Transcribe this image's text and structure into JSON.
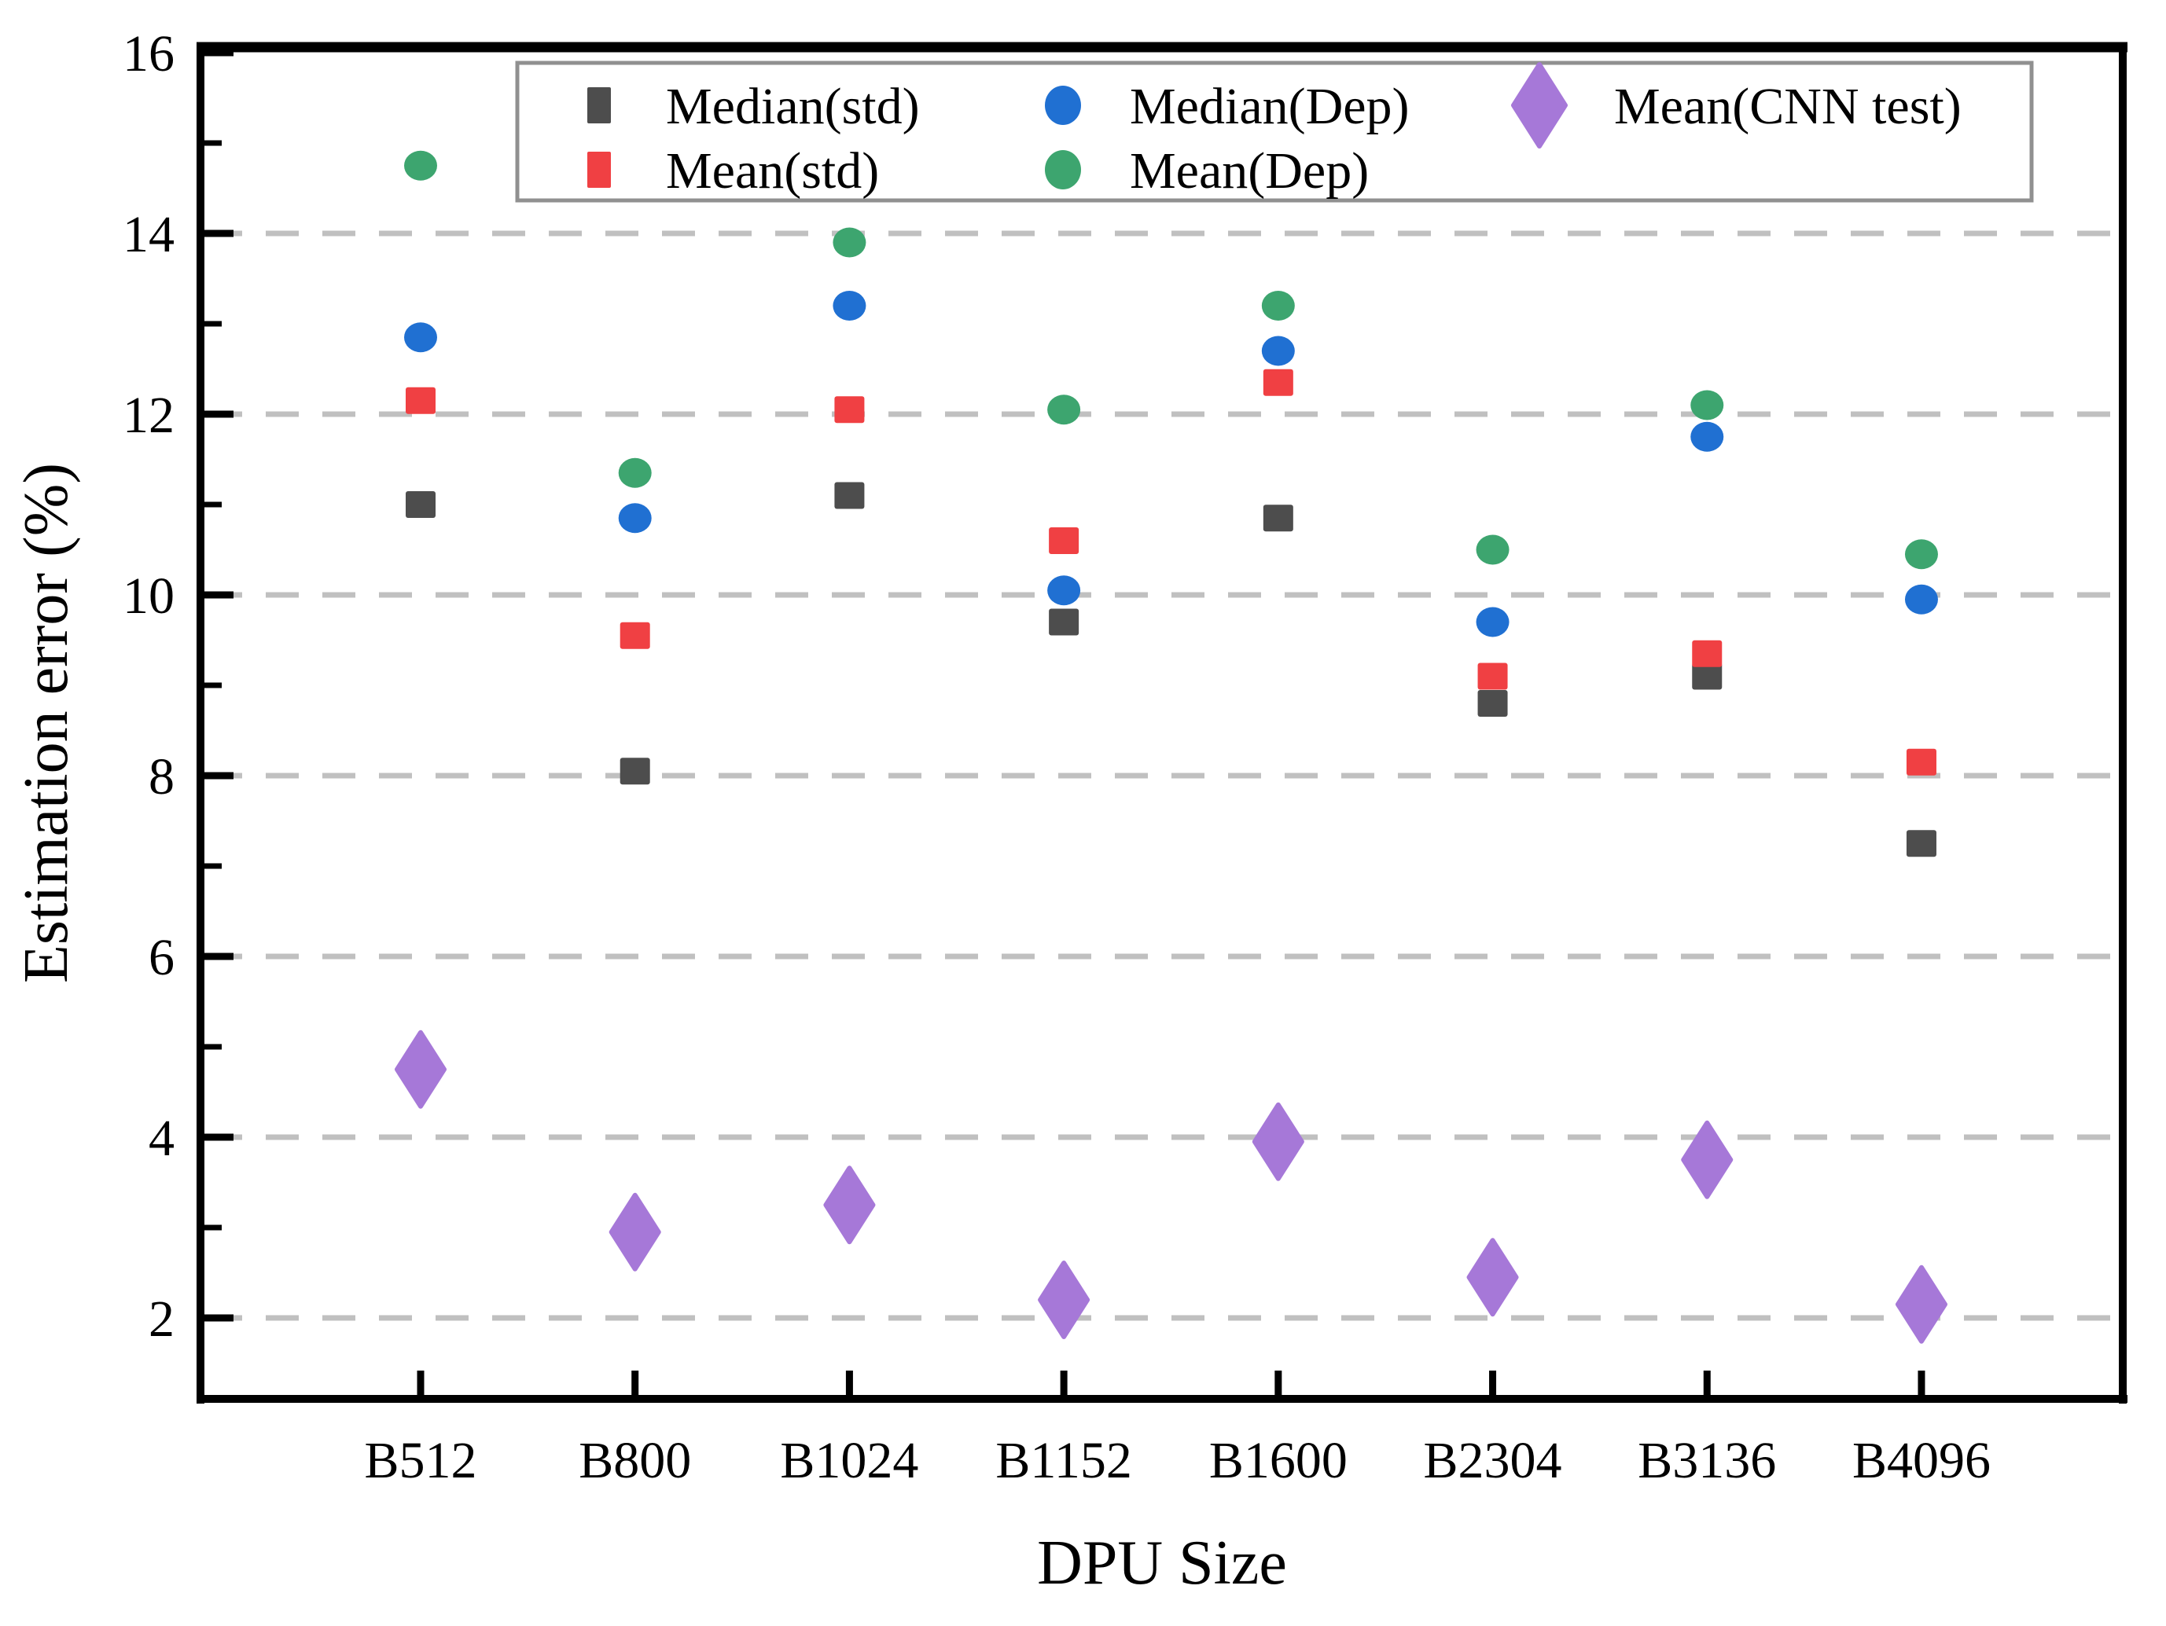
{
  "figure": {
    "background": "#ffffff",
    "spine_color": "#000000",
    "grid_color": "#c0c0c0",
    "legend_border_color": "#909090"
  },
  "chart_data": {
    "type": "scatter",
    "title": "",
    "xlabel": "DPU Size",
    "ylabel": "Estimation error (%)",
    "categories": [
      "B512",
      "B800",
      "B1024",
      "B1152",
      "B1600",
      "B2304",
      "B3136",
      "B4096"
    ],
    "yticks": [
      2,
      4,
      6,
      8,
      10,
      12,
      14,
      16
    ],
    "ylim": [
      1,
      16
    ],
    "grid": "horizontal dashed lines at major y ticks",
    "legend_position": "top inside, 2 rows x 3 columns",
    "series": [
      {
        "name": "Median(std)",
        "marker": "square",
        "color": "#4d4d4d",
        "values": [
          11.0,
          8.05,
          11.1,
          9.7,
          10.85,
          8.8,
          9.1,
          7.25
        ]
      },
      {
        "name": "Mean(std)",
        "marker": "square",
        "color": "#f04043",
        "values": [
          12.15,
          9.55,
          12.05,
          10.6,
          12.35,
          9.1,
          9.35,
          8.15
        ]
      },
      {
        "name": "Median(Dep)",
        "marker": "circle",
        "color": "#2070d2",
        "values": [
          12.85,
          10.85,
          13.2,
          10.05,
          12.7,
          9.7,
          11.75,
          9.95
        ]
      },
      {
        "name": "Mean(Dep)",
        "marker": "circle",
        "color": "#3da56f",
        "values": [
          14.75,
          11.35,
          13.9,
          12.05,
          13.2,
          10.5,
          12.1,
          10.45
        ]
      },
      {
        "name": "Mean(CNN test)",
        "marker": "diamond",
        "color": "#a678d8",
        "values": [
          4.75,
          2.95,
          3.25,
          2.2,
          3.95,
          2.45,
          3.75,
          2.15
        ]
      }
    ]
  }
}
